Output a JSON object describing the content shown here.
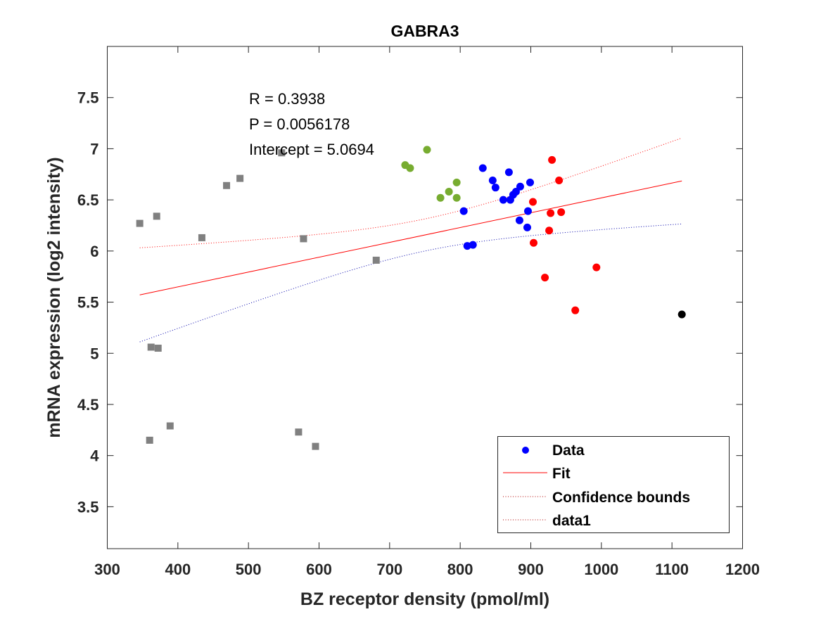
{
  "chart_data": {
    "type": "scatter",
    "title": "GABRA3",
    "xlabel": "BZ receptor density (pmol/ml)",
    "ylabel": "mRNA expression (log2 intensity)",
    "xlim": [
      300,
      1200
    ],
    "ylim": [
      3.09,
      8.0
    ],
    "xticks": [
      300,
      400,
      500,
      600,
      700,
      800,
      900,
      1000,
      1100,
      1200
    ],
    "yticks": [
      3.5,
      4,
      4.5,
      5,
      5.5,
      6,
      6.5,
      7,
      7.5
    ],
    "ytick_labels": [
      "3.5",
      "4",
      "4.5",
      "5",
      "5.5",
      "6",
      "6.5",
      "7",
      "7.5"
    ],
    "grid": false,
    "annotations": [
      "R = 0.3938",
      "P = 0.0056178",
      "Intercept = 5.0694"
    ],
    "legend": {
      "placement": "bottom-right",
      "entries": [
        "Data",
        "Fit",
        "Confidence bounds",
        "data1"
      ]
    },
    "groups": [
      {
        "name": "gray",
        "color": "#808080",
        "marker": "square",
        "points": [
          [
            346,
            6.27
          ],
          [
            370,
            6.34
          ],
          [
            434,
            6.13
          ],
          [
            469,
            6.64
          ],
          [
            488,
            6.71
          ],
          [
            547,
            6.96
          ],
          [
            578,
            6.12
          ],
          [
            681,
            5.91
          ],
          [
            362,
            5.06
          ],
          [
            372,
            5.05
          ],
          [
            360,
            4.15
          ],
          [
            389,
            4.29
          ],
          [
            571,
            4.23
          ],
          [
            595,
            4.09
          ]
        ]
      },
      {
        "name": "green",
        "color": "#77ac30",
        "marker": "circle",
        "points": [
          [
            753,
            6.99
          ],
          [
            722,
            6.84
          ],
          [
            729,
            6.81
          ],
          [
            772,
            6.52
          ],
          [
            784,
            6.58
          ],
          [
            795,
            6.67
          ],
          [
            795,
            6.52
          ]
        ]
      },
      {
        "name": "blue",
        "color": "#0000ff",
        "marker": "circle",
        "points": [
          [
            832,
            6.81
          ],
          [
            869,
            6.77
          ],
          [
            846,
            6.69
          ],
          [
            850,
            6.62
          ],
          [
            885,
            6.63
          ],
          [
            899,
            6.67
          ],
          [
            879,
            6.58
          ],
          [
            875,
            6.55
          ],
          [
            861,
            6.5
          ],
          [
            871,
            6.5
          ],
          [
            805,
            6.39
          ],
          [
            896,
            6.39
          ],
          [
            884,
            6.3
          ],
          [
            895,
            6.23
          ],
          [
            810,
            6.05
          ],
          [
            818,
            6.06
          ]
        ]
      },
      {
        "name": "red",
        "color": "#ff0000",
        "marker": "circle",
        "points": [
          [
            930,
            6.89
          ],
          [
            940,
            6.69
          ],
          [
            903,
            6.48
          ],
          [
            928,
            6.37
          ],
          [
            943,
            6.38
          ],
          [
            926,
            6.2
          ],
          [
            904,
            6.08
          ],
          [
            993,
            5.84
          ],
          [
            920,
            5.74
          ],
          [
            963,
            5.42
          ]
        ]
      },
      {
        "name": "black",
        "color": "#000000",
        "marker": "circle",
        "points": [
          [
            1114,
            5.38
          ]
        ]
      }
    ],
    "fit": {
      "slope": 0.00145,
      "y_at_xmin": 5.571,
      "x_range": [
        346,
        1114
      ],
      "color": "#ff0000"
    },
    "confidence": {
      "center_x": 750,
      "a": 0.0246,
      "b": 1.146e-06,
      "upper_color": "#ff0000",
      "lower_color": "#0000aa"
    }
  }
}
